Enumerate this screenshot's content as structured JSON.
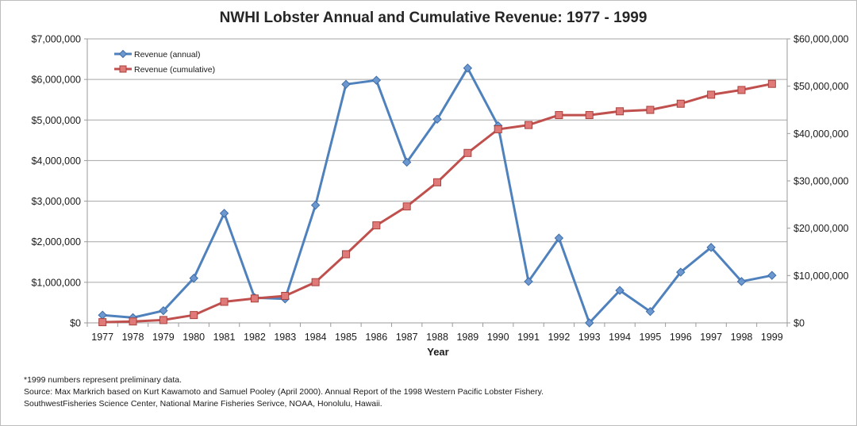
{
  "chart_data": {
    "type": "line",
    "title": "NWHI Lobster Annual and Cumulative Revenue: 1977 - 1999",
    "xlabel": "Year",
    "categories": [
      "1977",
      "1978",
      "1979",
      "1980",
      "1981",
      "1982",
      "1983",
      "1984",
      "1985",
      "1986",
      "1987",
      "1988",
      "1989",
      "1990",
      "1991",
      "1992",
      "1993",
      "1994",
      "1995",
      "1996",
      "1997",
      "1998",
      "1999"
    ],
    "y_left": {
      "lim": [
        0,
        7000000
      ],
      "ticks": [
        0,
        1000000,
        2000000,
        3000000,
        4000000,
        5000000,
        6000000,
        7000000
      ],
      "tick_labels": [
        "$0",
        "$1,000,000",
        "$2,000,000",
        "$3,000,000",
        "$4,000,000",
        "$5,000,000",
        "$6,000,000",
        "$7,000,000"
      ]
    },
    "y_right": {
      "lim": [
        0,
        60000000
      ],
      "ticks": [
        0,
        10000000,
        20000000,
        30000000,
        40000000,
        50000000,
        60000000
      ],
      "tick_labels": [
        "$0",
        "$10,000,000",
        "$20,000,000",
        "$30,000,000",
        "$40,000,000",
        "$50,000,000",
        "$60,000,000"
      ]
    },
    "grid": true,
    "legend_position": "top-left",
    "series": [
      {
        "name": "Revenue (annual)",
        "axis": "left",
        "marker": "diamond",
        "color": "#4f81bd",
        "values": [
          190000,
          130000,
          300000,
          1100000,
          2700000,
          620000,
          590000,
          2900000,
          5880000,
          5980000,
          3960000,
          5020000,
          6280000,
          4860000,
          1020000,
          2090000,
          0,
          800000,
          280000,
          1250000,
          1860000,
          1020000,
          1170000
        ]
      },
      {
        "name": "Revenue (cumulative)",
        "axis": "right",
        "marker": "square",
        "color": "#c0504d",
        "values": [
          150000,
          300000,
          600000,
          1650000,
          4450000,
          5150000,
          5700000,
          8600000,
          14500000,
          20600000,
          24600000,
          29700000,
          35900000,
          40900000,
          41800000,
          43900000,
          43900000,
          44700000,
          45000000,
          46300000,
          48200000,
          49200000,
          50500000
        ]
      }
    ]
  },
  "notes": {
    "line1": "*1999 numbers represent preliminary data.",
    "line2": "Source: Max Markrich based on Kurt Kawamoto and Samuel Pooley (April 2000). Annual Report of the 1998 Western Pacific Lobster Fishery.",
    "line3": "SouthwestFisheries Science Center, National Marine Fisheries Serivce, NOAA, Honolulu, Hawaii."
  }
}
